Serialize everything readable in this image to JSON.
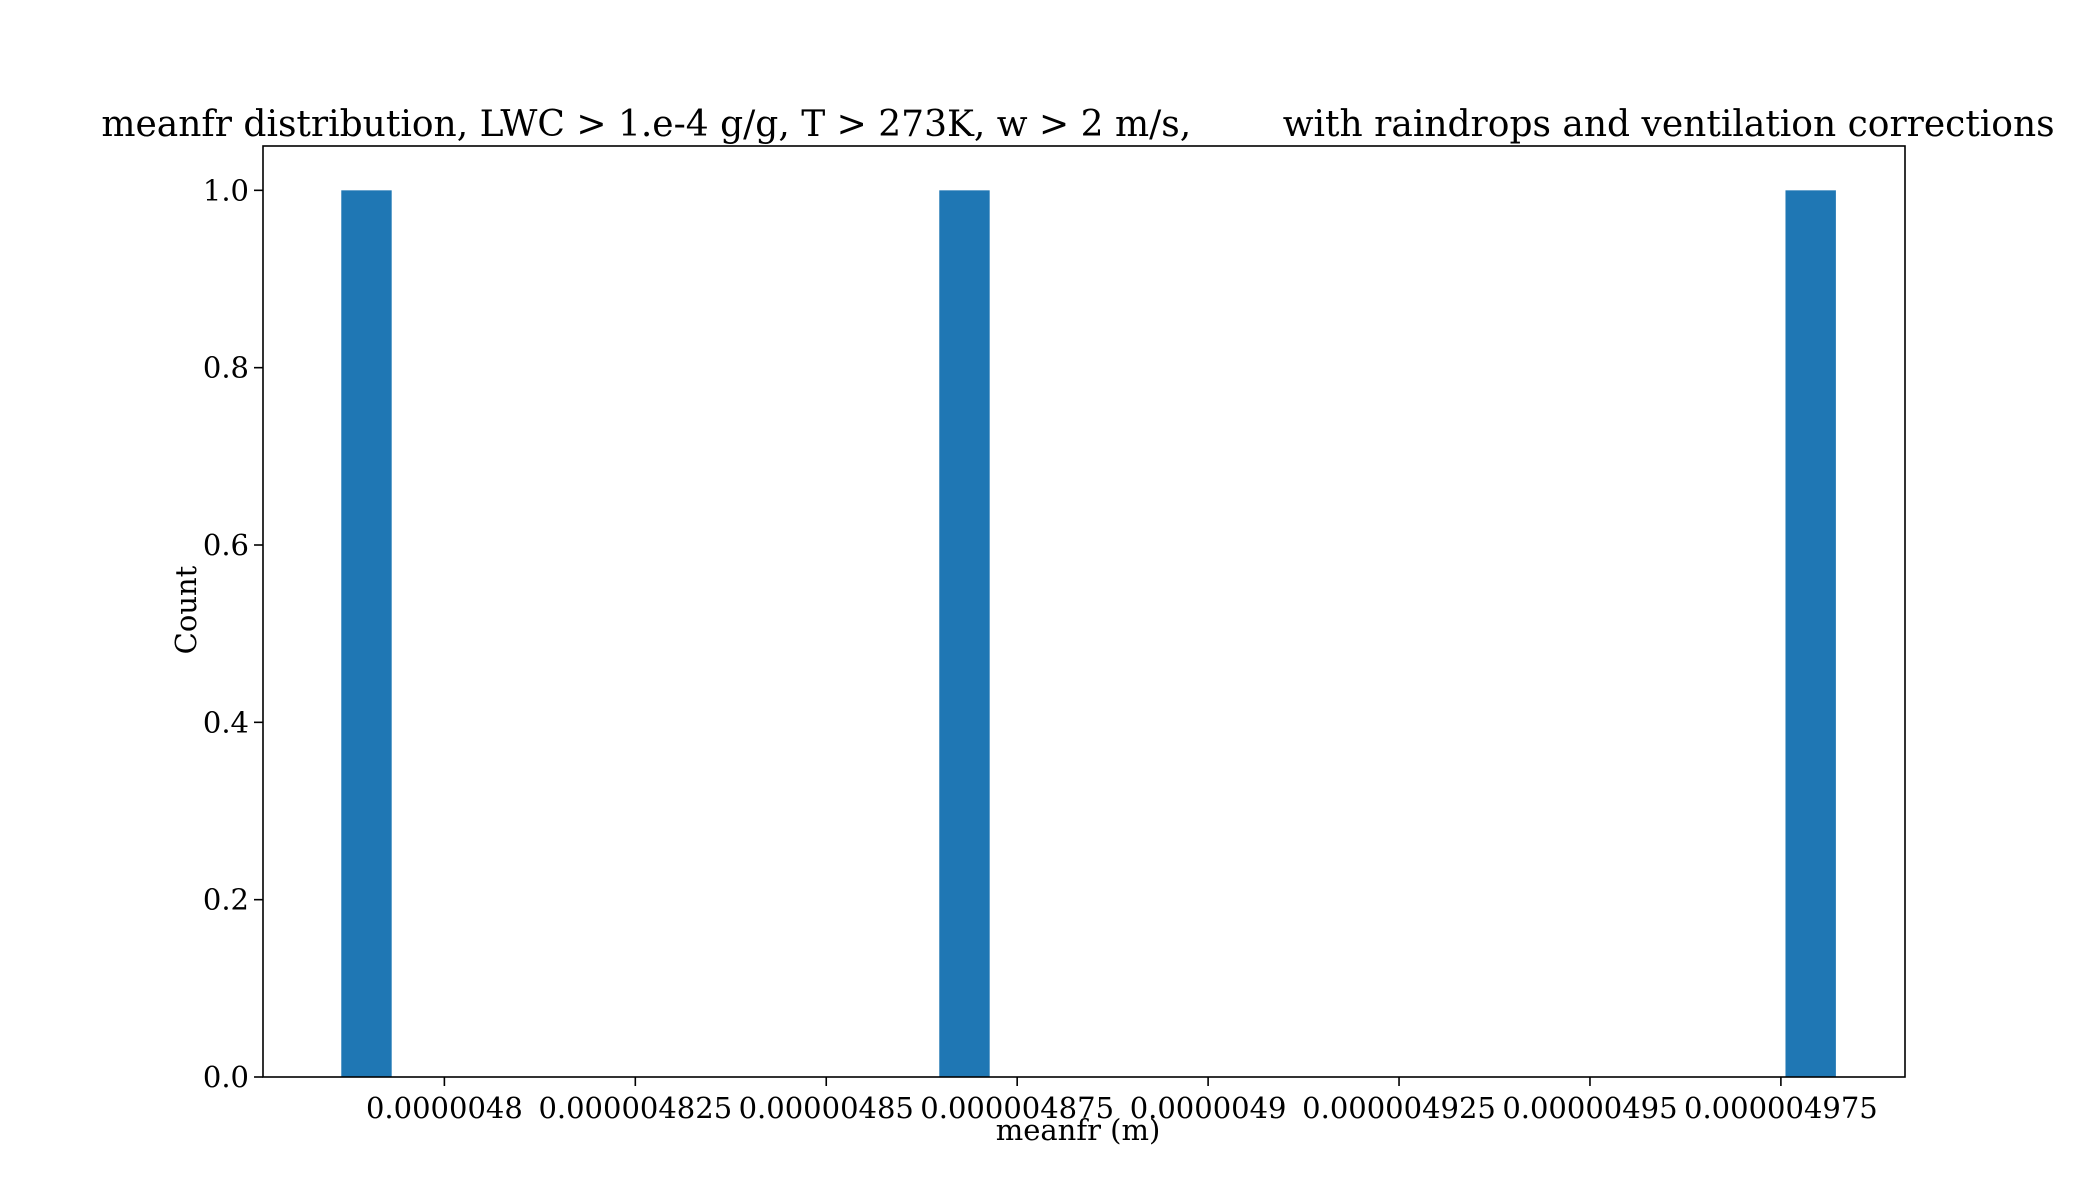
{
  "chart_data": {
    "type": "bar",
    "title": "meanfr distribution, LWC > 1.e-4 g/g, T > 273K, w > 2 m/s,        with raindrops and ventilation corrections",
    "xlabel": "meanfr (m)",
    "ylabel": "Count",
    "xlim": [
      4.77625e-06,
      4.99125e-06
    ],
    "ylim": [
      0.0,
      1.05
    ],
    "grid": false,
    "bar_color": "#1f77b4",
    "bars": [
      {
        "x_start": 4.7865e-06,
        "x_end": 4.7931e-06,
        "value": 1.0
      },
      {
        "x_start": 4.8648e-06,
        "x_end": 4.8714e-06,
        "value": 1.0
      },
      {
        "x_start": 4.9756e-06,
        "x_end": 4.9822e-06,
        "value": 1.0
      }
    ],
    "x_ticks": [
      {
        "value": 4.8e-06,
        "label": "0.0000048"
      },
      {
        "value": 4.825e-06,
        "label": "0.000004825"
      },
      {
        "value": 4.85e-06,
        "label": "0.00000485"
      },
      {
        "value": 4.875e-06,
        "label": "0.000004875"
      },
      {
        "value": 4.9e-06,
        "label": "0.0000049"
      },
      {
        "value": 4.925e-06,
        "label": "0.000004925"
      },
      {
        "value": 4.95e-06,
        "label": "0.00000495"
      },
      {
        "value": 4.975e-06,
        "label": "0.000004975"
      }
    ],
    "y_ticks": [
      {
        "value": 0.0,
        "label": "0.0"
      },
      {
        "value": 0.2,
        "label": "0.2"
      },
      {
        "value": 0.4,
        "label": "0.4"
      },
      {
        "value": 0.6,
        "label": "0.6"
      },
      {
        "value": 0.8,
        "label": "0.8"
      },
      {
        "value": 1.0,
        "label": "1.0"
      }
    ]
  }
}
